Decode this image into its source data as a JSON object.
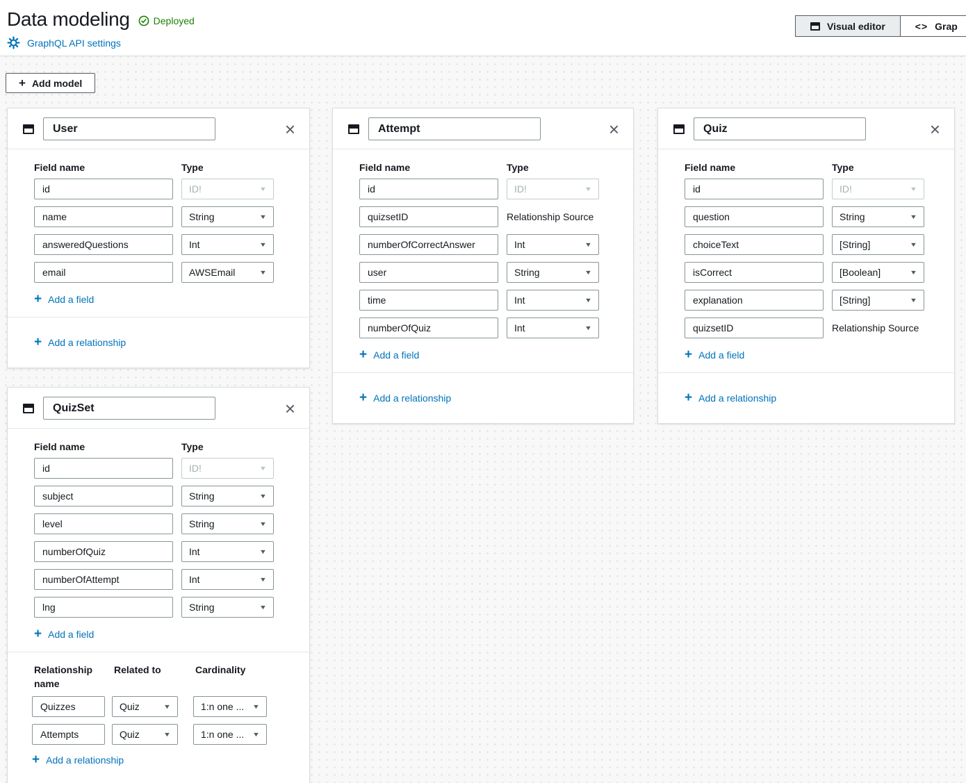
{
  "page": {
    "title": "Data modeling",
    "status_badge": "Deployed",
    "settings_link": "GraphQL API settings",
    "add_model_label": "Add model",
    "view_tabs": {
      "visual": "Visual editor",
      "code": "Grap"
    }
  },
  "labels": {
    "field_name": "Field name",
    "type": "Type",
    "add_field": "Add a field",
    "add_relationship": "Add a relationship",
    "relationship_name": "Relationship name",
    "related_to": "Related to",
    "cardinality": "Cardinality",
    "relationship_source": "Relationship Source"
  },
  "colors": {
    "link_blue": "#0073bb",
    "success_green": "#1d8102",
    "text_dark": "#16191f",
    "input_border": "#879596"
  },
  "models": [
    {
      "name": "User",
      "fields": [
        {
          "name": "id",
          "type": "ID!",
          "kind": "select-disabled"
        },
        {
          "name": "name",
          "type": "String",
          "kind": "select"
        },
        {
          "name": "answeredQuestions",
          "type": "Int",
          "kind": "select"
        },
        {
          "name": "email",
          "type": "AWSEmail",
          "kind": "select"
        }
      ],
      "relationships": []
    },
    {
      "name": "Attempt",
      "fields": [
        {
          "name": "id",
          "type": "ID!",
          "kind": "select-disabled"
        },
        {
          "name": "quizsetID",
          "type": "Relationship Source",
          "kind": "text"
        },
        {
          "name": "numberOfCorrectAnswer",
          "type": "Int",
          "kind": "select"
        },
        {
          "name": "user",
          "type": "String",
          "kind": "select"
        },
        {
          "name": "time",
          "type": "Int",
          "kind": "select"
        },
        {
          "name": "numberOfQuiz",
          "type": "Int",
          "kind": "select"
        }
      ],
      "relationships": []
    },
    {
      "name": "Quiz",
      "fields": [
        {
          "name": "id",
          "type": "ID!",
          "kind": "select-disabled"
        },
        {
          "name": "question",
          "type": "String",
          "kind": "select"
        },
        {
          "name": "choiceText",
          "type": "[String]",
          "kind": "select"
        },
        {
          "name": "isCorrect",
          "type": "[Boolean]",
          "kind": "select"
        },
        {
          "name": "explanation",
          "type": "[String]",
          "kind": "select"
        },
        {
          "name": "quizsetID",
          "type": "Relationship Source",
          "kind": "text"
        }
      ],
      "relationships": []
    },
    {
      "name": "QuizSet",
      "fields": [
        {
          "name": "id",
          "type": "ID!",
          "kind": "select-disabled"
        },
        {
          "name": "subject",
          "type": "String",
          "kind": "select"
        },
        {
          "name": "level",
          "type": "String",
          "kind": "select"
        },
        {
          "name": "numberOfQuiz",
          "type": "Int",
          "kind": "select"
        },
        {
          "name": "numberOfAttempt",
          "type": "Int",
          "kind": "select"
        },
        {
          "name": "lng",
          "type": "String",
          "kind": "select"
        }
      ],
      "relationships": [
        {
          "name": "Quizzes",
          "related_to": "Quiz",
          "cardinality": "1:n one ..."
        },
        {
          "name": "Attempts",
          "related_to": "Quiz",
          "cardinality": "1:n one ..."
        }
      ]
    }
  ]
}
